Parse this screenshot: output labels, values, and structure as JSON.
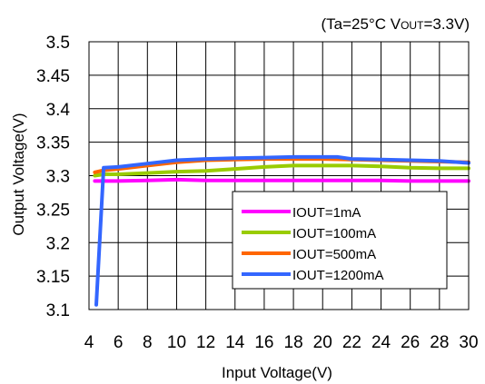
{
  "chart_data": {
    "type": "line",
    "annotation": {
      "prefix": "(Ta=25°C  V",
      "sub": "OUT",
      "suffix": "=3.3V)"
    },
    "xlabel": "Input Voltage(V)",
    "ylabel": "Output Voltage(V)",
    "xlim": [
      4,
      30
    ],
    "ylim": [
      3.1,
      3.5
    ],
    "xticks": [
      4,
      6,
      8,
      10,
      12,
      14,
      16,
      18,
      20,
      22,
      24,
      26,
      28,
      30
    ],
    "yticks": [
      3.1,
      3.15,
      3.2,
      3.25,
      3.3,
      3.35,
      3.4,
      3.45,
      3.5
    ],
    "xtick_labels": [
      "4",
      "6",
      "8",
      "10",
      "12",
      "14",
      "16",
      "18",
      "20",
      "22",
      "24",
      "26",
      "28",
      "30"
    ],
    "ytick_labels": [
      "3.1",
      "3.15",
      "3.2",
      "3.25",
      "3.3",
      "3.35",
      "3.4",
      "3.45",
      "3.5"
    ],
    "grid": true,
    "legend_position": "bottom-right",
    "series": [
      {
        "name": "IOUT=1mA",
        "color": "#ff00ff",
        "x": [
          4.4,
          6,
          8,
          10,
          12,
          14,
          16,
          18,
          20,
          22,
          24,
          26,
          28,
          30
        ],
        "y": [
          3.292,
          3.292,
          3.293,
          3.294,
          3.293,
          3.293,
          3.293,
          3.293,
          3.293,
          3.293,
          3.293,
          3.292,
          3.292,
          3.292
        ]
      },
      {
        "name": "IOUT=100mA",
        "color": "#99cc00",
        "x": [
          4.4,
          5,
          6,
          8,
          10,
          12,
          14,
          16,
          18,
          20,
          22,
          24,
          26,
          28,
          30
        ],
        "y": [
          3.3,
          3.302,
          3.302,
          3.304,
          3.306,
          3.307,
          3.31,
          3.313,
          3.315,
          3.315,
          3.315,
          3.314,
          3.312,
          3.311,
          3.311
        ]
      },
      {
        "name": "IOUT=500mA",
        "color": "#ff6600",
        "x": [
          4.4,
          5,
          6,
          8,
          10,
          12,
          14,
          16,
          18,
          20,
          22,
          24,
          26,
          28,
          30
        ],
        "y": [
          3.305,
          3.308,
          3.31,
          3.315,
          3.32,
          3.323,
          3.324,
          3.325,
          3.325,
          3.325,
          3.324,
          3.323,
          3.322,
          3.321,
          3.32
        ]
      },
      {
        "name": "IOUT=1200mA",
        "color": "#3366ff",
        "x": [
          4.5,
          5,
          6,
          8,
          10,
          12,
          14,
          16,
          18,
          20,
          21,
          22,
          24,
          26,
          28,
          30
        ],
        "y": [
          3.107,
          3.312,
          3.313,
          3.318,
          3.323,
          3.325,
          3.326,
          3.327,
          3.328,
          3.328,
          3.328,
          3.325,
          3.324,
          3.323,
          3.322,
          3.319
        ]
      }
    ]
  }
}
